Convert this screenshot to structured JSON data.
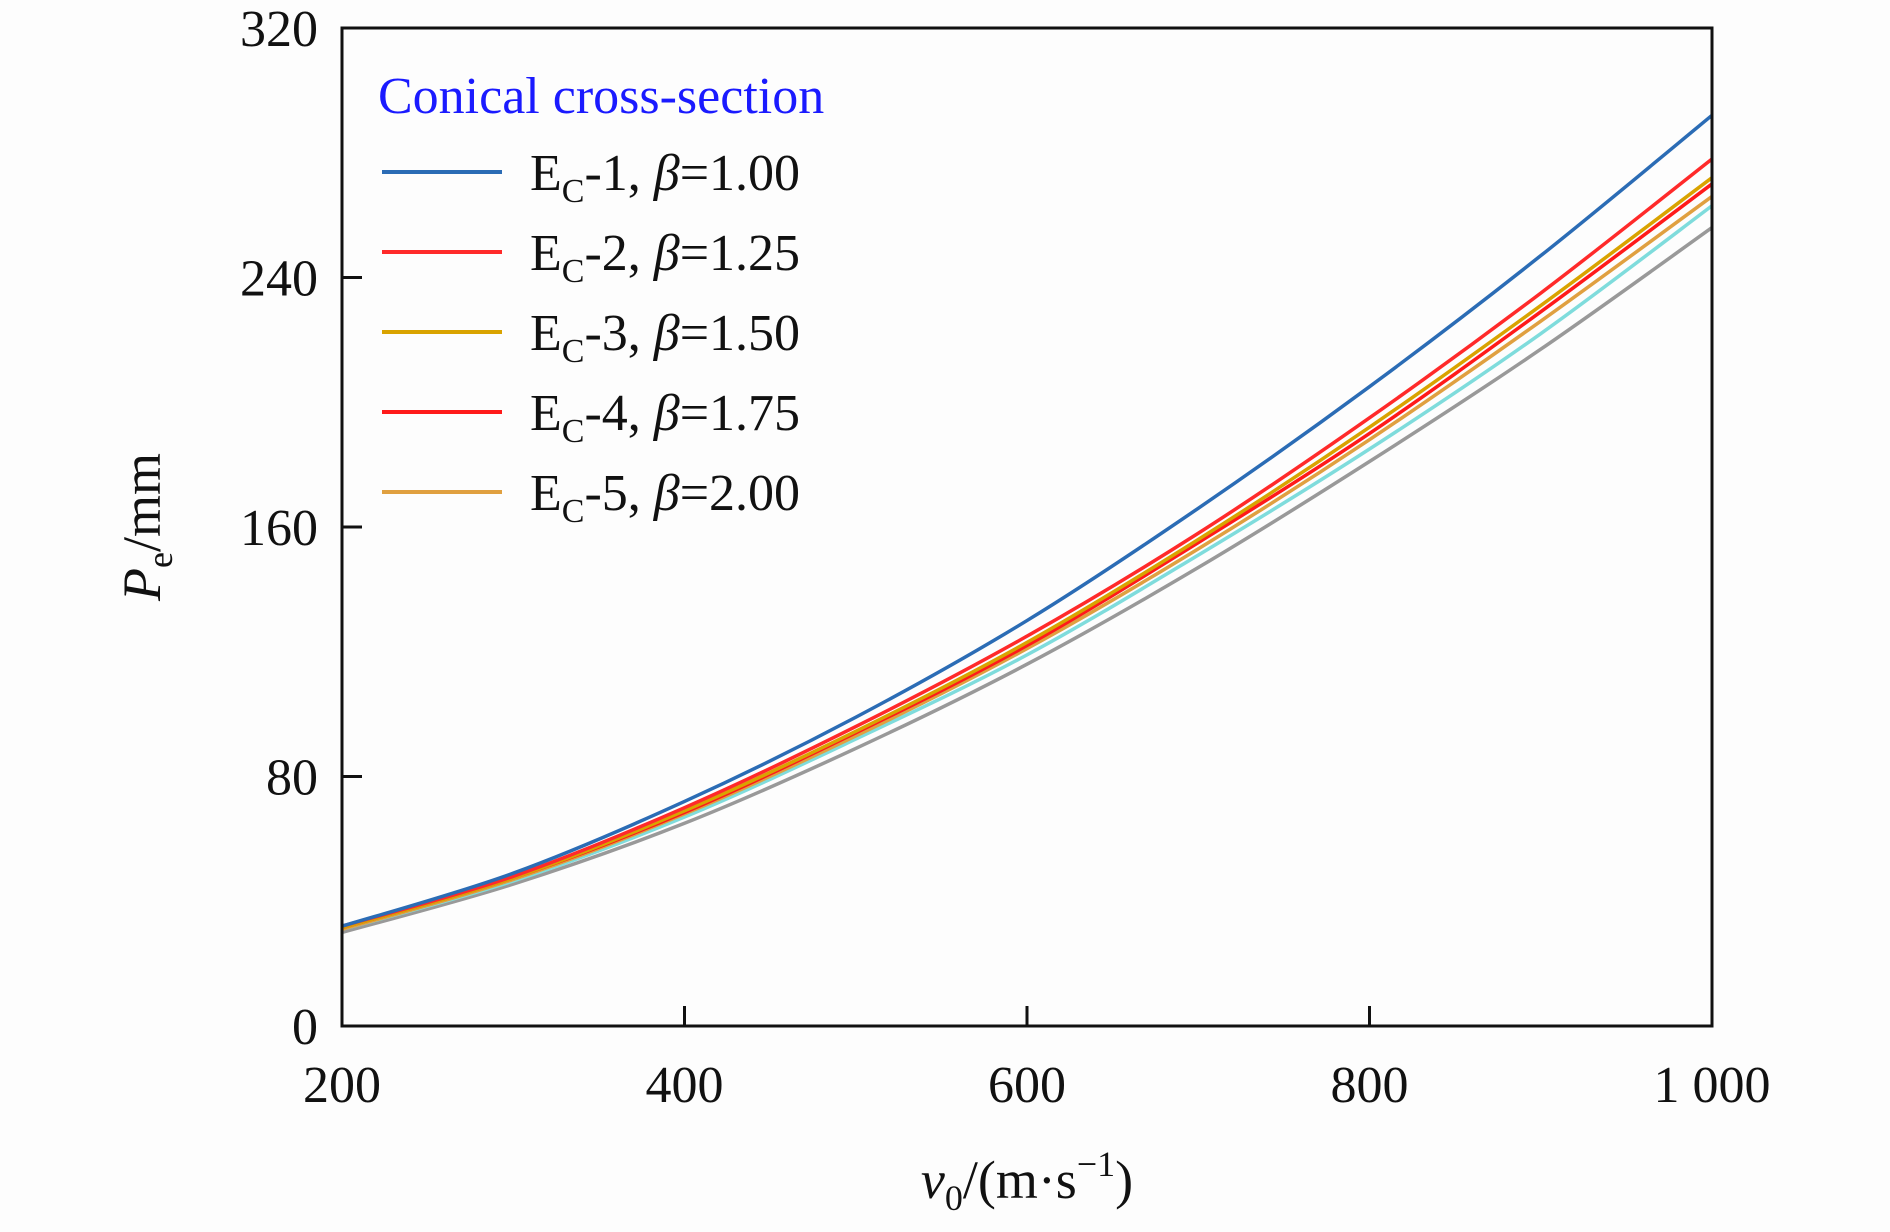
{
  "chart_data": {
    "type": "line",
    "title": "",
    "xlabel": {
      "var": "v",
      "sub": "0",
      "unit": "/(m·s",
      "exp": "−1",
      "close": ")"
    },
    "ylabel": {
      "var": "P",
      "sub": "e",
      "unit": "/mm"
    },
    "xlim": [
      200,
      1000
    ],
    "ylim": [
      0,
      320
    ],
    "x_ticks": [
      200,
      400,
      600,
      800,
      1000
    ],
    "x_tick_labels": [
      "200",
      "400",
      "600",
      "800",
      "1 000"
    ],
    "y_ticks": [
      0,
      80,
      160,
      240,
      320
    ],
    "y_tick_labels": [
      "0",
      "80",
      "160",
      "240",
      "320"
    ],
    "grid": false,
    "legend": {
      "position": "top-left",
      "title": "Conical cross-section",
      "title_color": "#1a1aff"
    },
    "x": [
      200,
      300,
      400,
      500,
      600,
      700,
      800,
      900,
      1000
    ],
    "series": [
      {
        "name": "E",
        "sub": "C",
        "suffix": "-1, ",
        "beta": "β",
        "value": "=1.00",
        "color": "#2b6cb5",
        "values": [
          32,
          49,
          72,
          99,
          130,
          166,
          205,
          247,
          292
        ]
      },
      {
        "name": "E",
        "sub": "C",
        "suffix": "-2, ",
        "beta": "β",
        "value": "=1.25",
        "color": "#ff2a2a",
        "values": [
          32,
          48,
          70,
          96,
          125,
          158,
          195,
          235,
          278
        ]
      },
      {
        "name": "E",
        "sub": "C",
        "suffix": "-3, ",
        "beta": "β",
        "value": "=1.50",
        "color": "#d9a300",
        "values": [
          31.5,
          47.5,
          69,
          94.5,
          123,
          156,
          192,
          231,
          272
        ]
      },
      {
        "name": "E",
        "sub": "C",
        "suffix": "-4, ",
        "beta": "β",
        "value": "=1.75",
        "color": "#ff1a1a",
        "values": [
          31.5,
          47.5,
          68.5,
          94,
          122,
          155,
          190,
          229,
          270
        ]
      },
      {
        "name": "E",
        "sub": "C",
        "suffix": "-5, ",
        "beta": "β",
        "value": "=2.00",
        "color": "#e0a040",
        "values": [
          31,
          47,
          68,
          93,
          121,
          153,
          188,
          226,
          266
        ]
      },
      {
        "color": "#7fdcdc",
        "values": [
          31,
          46.5,
          67,
          92,
          119,
          151,
          185,
          222,
          263
        ]
      },
      {
        "color": "#999999",
        "values": [
          30,
          45.5,
          65,
          89,
          116,
          147,
          181,
          217,
          256
        ]
      }
    ]
  }
}
